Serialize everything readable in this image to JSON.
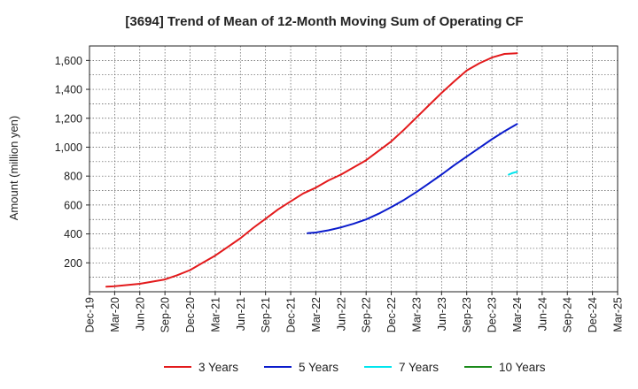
{
  "chart_data": {
    "type": "line",
    "title": "[3694]  Trend of Mean of 12-Month Moving Sum of Operating CF",
    "xlabel": "",
    "ylabel": "Amount (million yen)",
    "ylim": [
      0,
      1700
    ],
    "yticks": [
      200,
      400,
      600,
      800,
      1000,
      1200,
      1400,
      1600
    ],
    "ytick_labels": [
      "200",
      "400",
      "600",
      "800",
      "1,000",
      "1,200",
      "1,400",
      "1,600"
    ],
    "x_tick_labels": [
      "Dec-19",
      "Mar-20",
      "Jun-20",
      "Sep-20",
      "Dec-20",
      "Mar-21",
      "Jun-21",
      "Sep-21",
      "Dec-21",
      "Mar-22",
      "Jun-22",
      "Sep-22",
      "Dec-22",
      "Mar-23",
      "Jun-23",
      "Sep-23",
      "Dec-23",
      "Mar-24",
      "Jun-24",
      "Sep-24",
      "Dec-24",
      "Mar-25"
    ],
    "grid": true,
    "legend_position": "bottom",
    "series": [
      {
        "name": "3 Years",
        "color": "#e31a1c",
        "x": [
          0.67,
          1,
          2,
          3,
          3.5,
          4,
          4.5,
          5,
          5.5,
          6,
          6.5,
          7,
          7.5,
          8,
          8.5,
          9,
          9.5,
          10,
          10.5,
          11,
          11.5,
          12,
          12.5,
          13,
          13.5,
          14,
          14.5,
          15,
          15.5,
          16,
          16.5,
          17
        ],
        "values": [
          35,
          38,
          55,
          85,
          115,
          150,
          200,
          250,
          310,
          370,
          440,
          505,
          570,
          625,
          680,
          720,
          770,
          810,
          860,
          910,
          975,
          1040,
          1120,
          1205,
          1290,
          1375,
          1455,
          1530,
          1580,
          1620,
          1645,
          1650
        ]
      },
      {
        "name": "5 Years",
        "color": "#0a1bcc",
        "x": [
          8.67,
          9,
          9.5,
          10,
          10.5,
          11,
          11.5,
          12,
          12.5,
          13,
          13.5,
          14,
          14.5,
          15,
          15.5,
          16,
          16.5,
          17
        ],
        "values": [
          405,
          410,
          425,
          445,
          470,
          500,
          540,
          585,
          635,
          690,
          750,
          810,
          875,
          935,
          995,
          1055,
          1110,
          1160
        ]
      },
      {
        "name": "7 Years",
        "color": "#00e5ee",
        "x": [
          16.67,
          16.8,
          17
        ],
        "values": [
          810,
          820,
          830
        ]
      },
      {
        "name": "10 Years",
        "color": "#1a8a1a",
        "x": [],
        "values": []
      }
    ]
  }
}
